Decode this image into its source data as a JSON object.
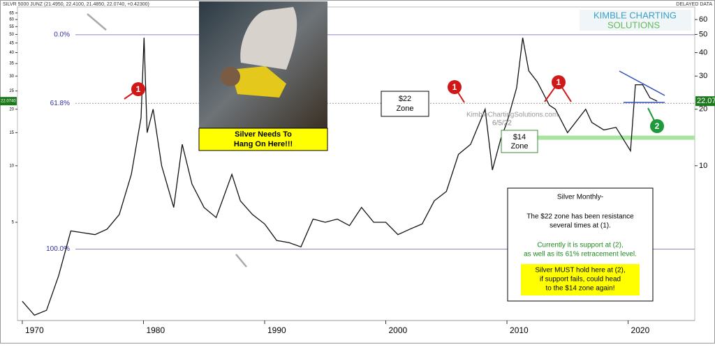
{
  "chart_data": {
    "type": "line",
    "header": "SILVR 5000 JUNZ (21.4950, 22.4100, 21.4850, 22.0740, +0.42300)",
    "delayed": "DELAYED DATA",
    "logo": [
      "KIMBLE CHARTING",
      "SOLUTIONS"
    ],
    "watermark": "KimbleChartingSolutions.com",
    "date": "6/5/22",
    "photo_caption": [
      "Silver Needs To",
      "Hang On Here!!!"
    ],
    "zone_labels": [
      [
        "$22",
        "Zone"
      ],
      [
        "$14",
        "Zone"
      ]
    ],
    "markers": [
      "1",
      "1",
      "1",
      "2"
    ],
    "note": {
      "title": "Silver Monthly-",
      "resistance": [
        "The $22 zone has been resistance",
        "several times at (1)."
      ],
      "support": [
        "Currently it is support at (2),",
        "as well as its 61% retracement level."
      ],
      "warning": [
        "Silver MUST hold here at (2),",
        "if support fails, could head",
        "to the $14 zone again!"
      ]
    },
    "fib_levels": [
      {
        "label": "0.0%",
        "value": 49.8
      },
      {
        "label": "61.8%",
        "value": 21.5
      },
      {
        "label": "100.0%",
        "value": 3.6
      }
    ],
    "support_zone": 14.1,
    "last_price_labels": [
      "22.0740",
      "22.07"
    ],
    "last_price": 22.07,
    "x": [
      1970,
      1971,
      1972,
      1973,
      1974,
      1975,
      1976,
      1977,
      1978,
      1979,
      1979.8,
      1980.05,
      1980.3,
      1980.8,
      1981.5,
      1982.5,
      1983.2,
      1984,
      1985,
      1986,
      1987.3,
      1988,
      1989,
      1990,
      1991,
      1992,
      1993,
      1994,
      1995,
      1996,
      1997,
      1998,
      1999,
      2000,
      2001,
      2002,
      2003,
      2004,
      2005,
      2006,
      2007,
      2008.2,
      2008.8,
      2009.5,
      2010,
      2010.8,
      2011.3,
      2011.8,
      2012.5,
      2013.5,
      2014,
      2015,
      2016.5,
      2017,
      2018,
      2019,
      2020.2,
      2020.6,
      2021.2,
      2021.8,
      2022.4
    ],
    "series": [
      {
        "name": "Silver",
        "color": "#111111",
        "values": [
          1.9,
          1.6,
          1.7,
          2.6,
          4.5,
          4.4,
          4.3,
          4.6,
          5.5,
          9,
          18,
          48,
          15,
          20,
          10,
          6,
          13,
          8,
          6,
          5.3,
          9,
          6.5,
          5.5,
          4.9,
          4.0,
          3.9,
          3.7,
          5.2,
          5.0,
          5.2,
          4.8,
          6.0,
          5.0,
          5.0,
          4.3,
          4.6,
          4.9,
          6.5,
          7.3,
          11.5,
          13,
          20,
          9.5,
          14,
          17,
          26,
          48,
          32,
          28,
          21,
          20,
          15,
          20,
          17,
          15.5,
          16,
          12,
          27,
          27,
          23,
          22.07
        ]
      }
    ],
    "xlim": [
      1969.6,
      2025.5
    ],
    "xticks": [
      1970,
      1980,
      1990,
      2000,
      2010,
      2020
    ],
    "log_scale": true,
    "ylim": [
      1.5,
      70
    ],
    "yticks": [
      10,
      20,
      30,
      40,
      50,
      60
    ],
    "y2lim": [
      1.5,
      70
    ],
    "y2ticks": [
      5,
      10,
      15,
      20,
      25,
      30,
      35,
      40,
      45,
      50,
      55,
      60,
      65
    ]
  }
}
